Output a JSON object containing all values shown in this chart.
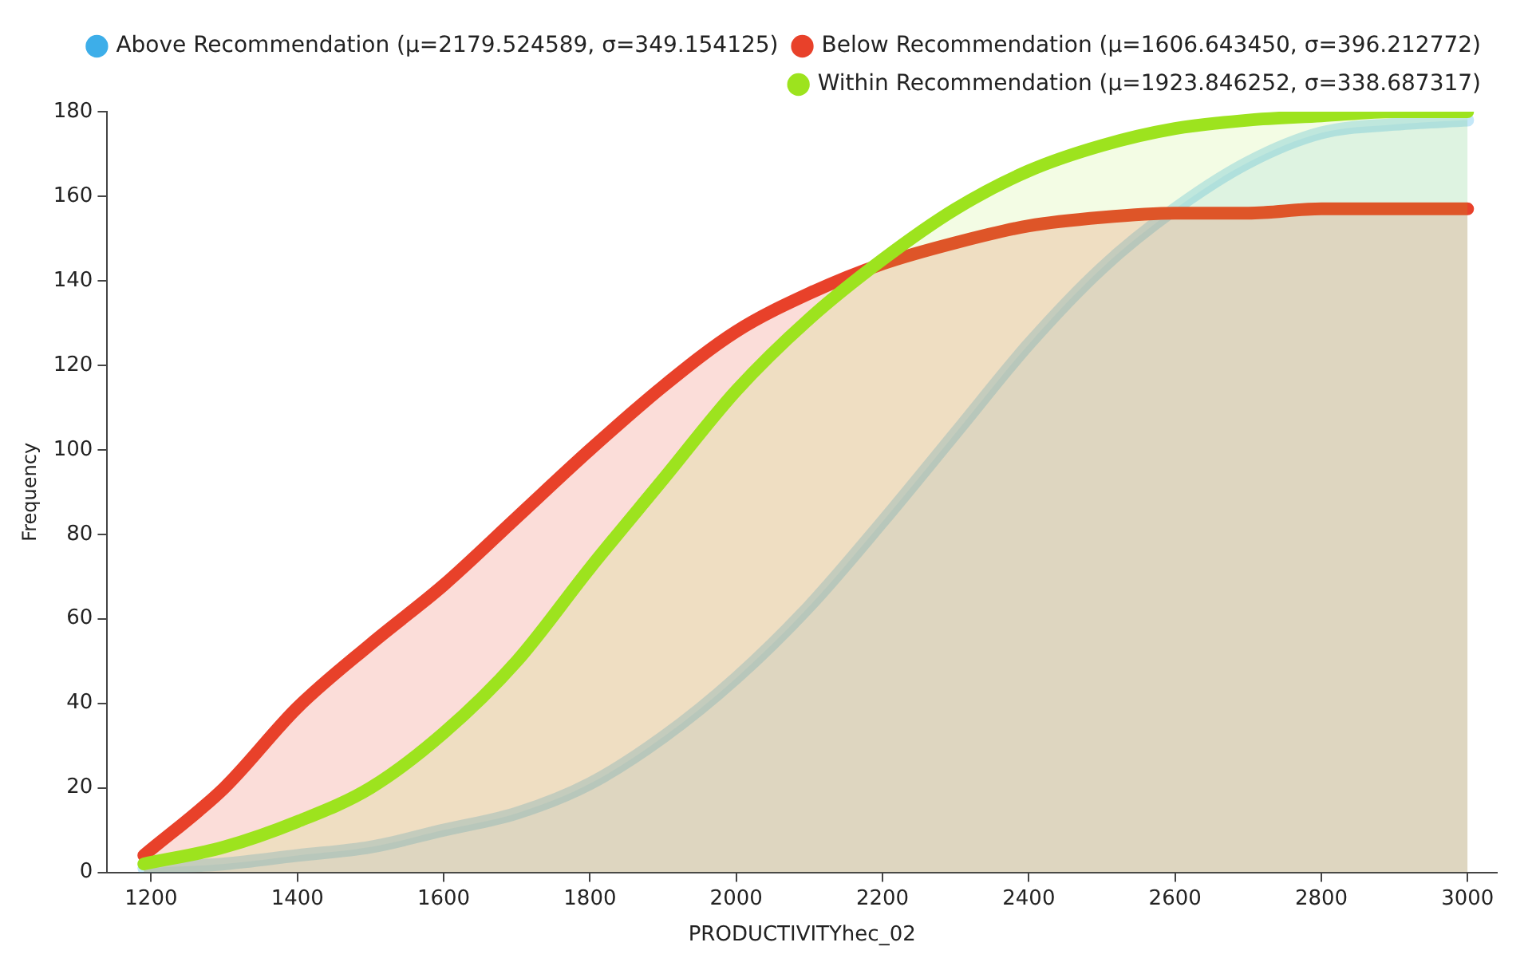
{
  "chart_data": {
    "type": "area",
    "xlabel": "PRODUCTIVITYhec_02",
    "ylabel": "Frequency",
    "x": [
      1190,
      1300,
      1400,
      1500,
      1600,
      1700,
      1800,
      1900,
      2000,
      2100,
      2200,
      2300,
      2400,
      2500,
      2600,
      2700,
      2800,
      2900,
      3000
    ],
    "series": [
      {
        "name": "Above Recommendation (μ=2179.524589, σ=349.154125)",
        "color": "#3daee9",
        "values": [
          1,
          2,
          4,
          6,
          10,
          14,
          21,
          32,
          46,
          63,
          83,
          104,
          125,
          143,
          157,
          168,
          175,
          177,
          178
        ]
      },
      {
        "name": "Below Recommendation (μ=1606.643450, σ=396.212772)",
        "color": "#e8412a",
        "values": [
          4,
          20,
          39,
          54,
          68,
          84,
          100,
          115,
          128,
          137,
          144,
          149,
          153,
          155,
          156,
          156,
          157,
          157,
          157
        ]
      },
      {
        "name": "Within Recommendation (μ=1923.846252, σ=338.687317)",
        "color": "#9de31e",
        "values": [
          2,
          6,
          12,
          20,
          33,
          50,
          72,
          93,
          114,
          131,
          145,
          157,
          166,
          172,
          176,
          178,
          179,
          180,
          180
        ]
      }
    ],
    "xlim": [
      1140,
      3040
    ],
    "ylim": [
      0,
      180
    ],
    "xticks": [
      1200,
      1400,
      1600,
      1800,
      2000,
      2200,
      2400,
      2600,
      2800,
      3000
    ],
    "yticks": [
      0,
      20,
      40,
      60,
      80,
      100,
      120,
      140,
      160,
      180
    ],
    "grid": false,
    "legend": "top right",
    "marker": "none",
    "line_style": "solid"
  }
}
